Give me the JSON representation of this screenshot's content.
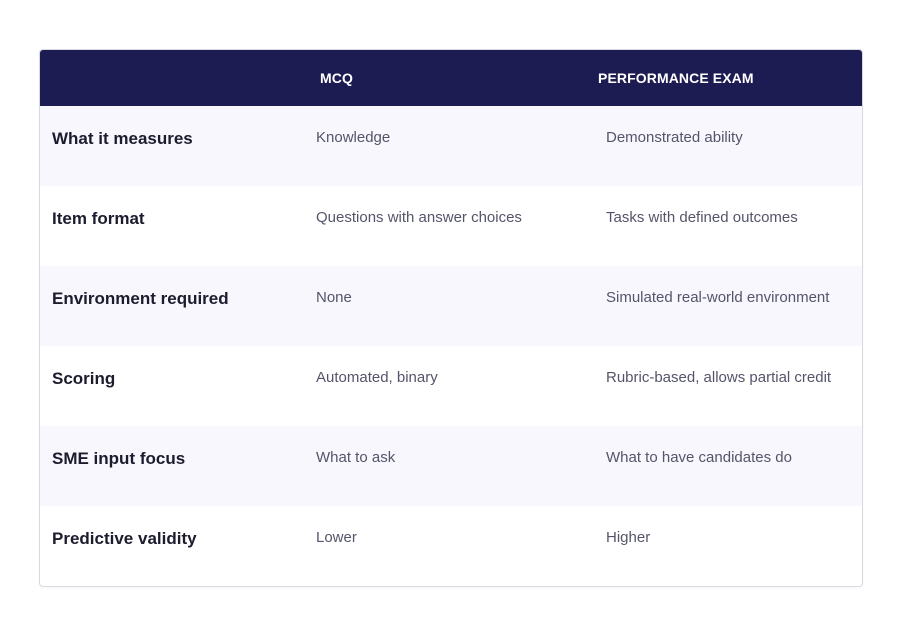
{
  "table": {
    "headers": [
      "",
      "MCQ",
      "PERFORMANCE EXAM"
    ],
    "rows": [
      {
        "label": "What it measures",
        "mcq": "Knowledge",
        "performance": "Demonstrated ability"
      },
      {
        "label": "Item format",
        "mcq": "Questions with answer choices",
        "performance": "Tasks with defined outcomes"
      },
      {
        "label": "Environment required",
        "mcq": "None",
        "performance": "Simulated real-world environment"
      },
      {
        "label": "Scoring",
        "mcq": "Automated, binary",
        "performance": "Rubric-based, allows partial credit"
      },
      {
        "label": "SME input focus",
        "mcq": "What to ask",
        "performance": "What to have candidates do"
      },
      {
        "label": "Predictive validity",
        "mcq": "Lower",
        "performance": "Higher"
      }
    ]
  },
  "colors": {
    "header_bg": "#1c1c52",
    "alt_row_bg": "#f7f7fd",
    "label_text": "#1c1c2e",
    "cell_text": "#55556a"
  }
}
